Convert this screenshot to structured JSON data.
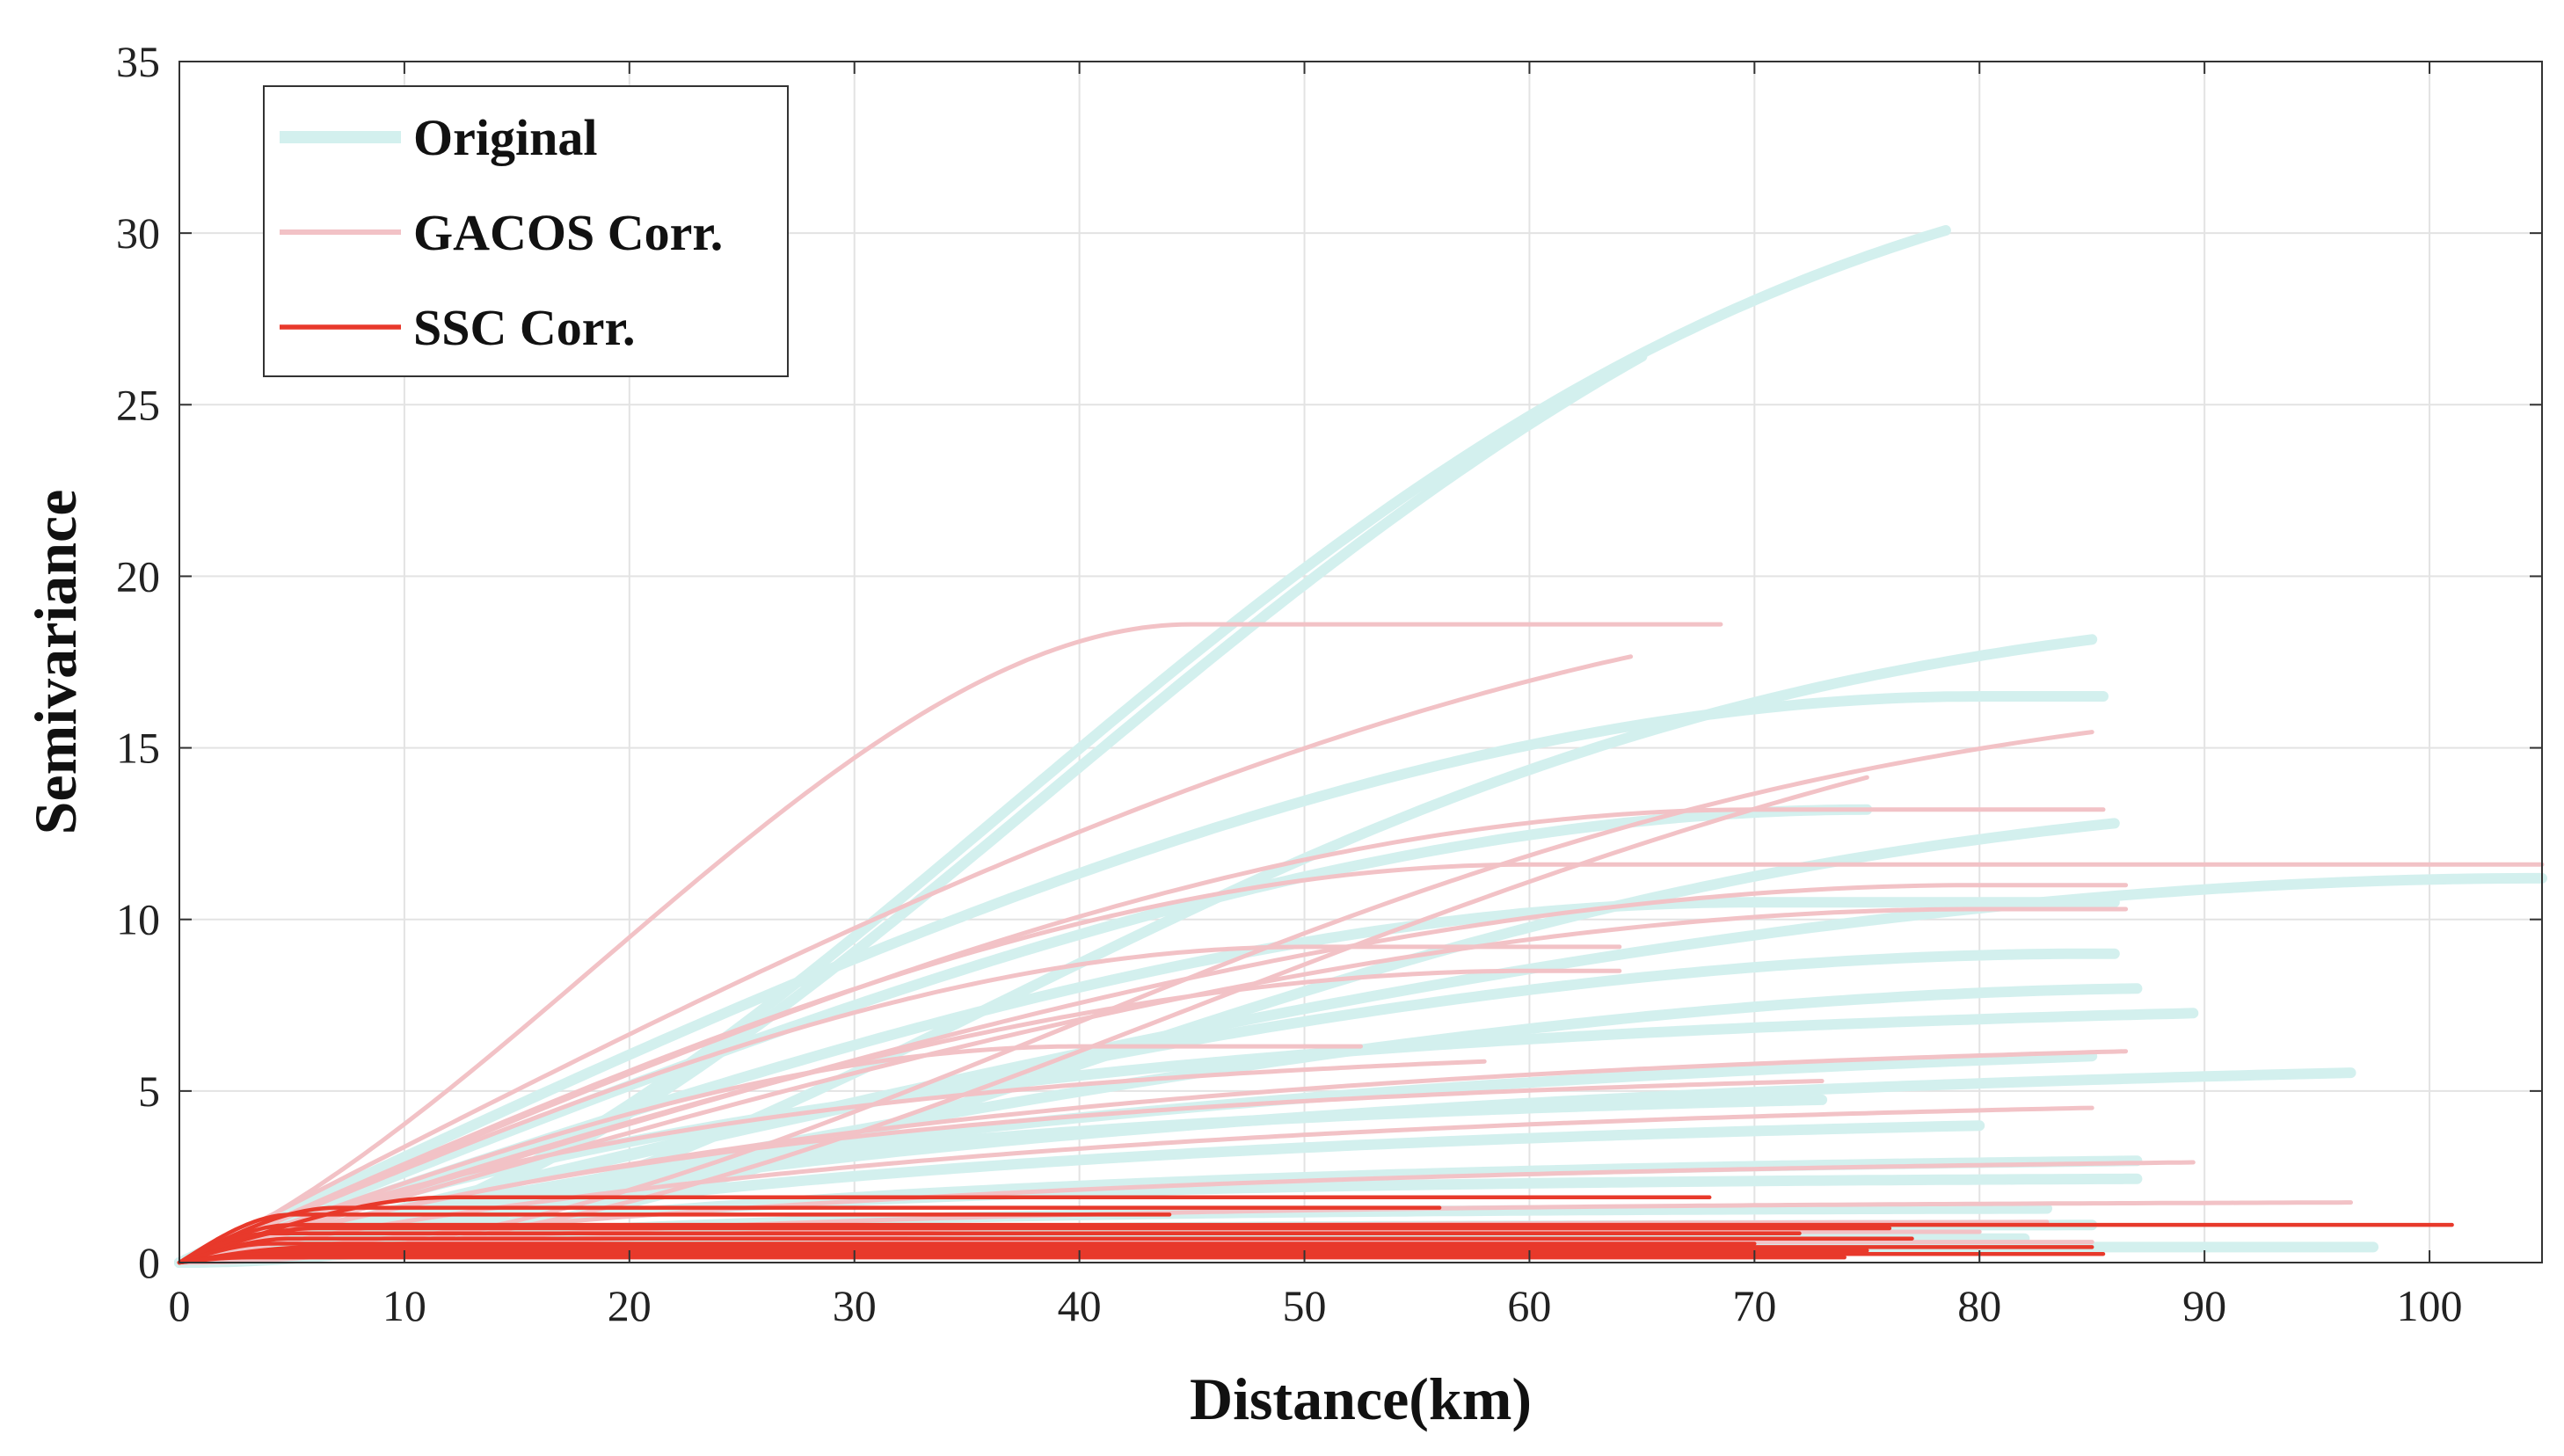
{
  "chart_data": {
    "type": "line",
    "title": "",
    "xlabel": "Distance(km)",
    "ylabel": "Semivariance",
    "xlim": [
      0,
      105
    ],
    "ylim": [
      0,
      35
    ],
    "xticks": [
      0,
      10,
      20,
      30,
      40,
      50,
      60,
      70,
      80,
      90,
      100
    ],
    "yticks": [
      0,
      5,
      10,
      15,
      20,
      25,
      30,
      35
    ],
    "grid": true,
    "legend_position": "top-left",
    "legend": [
      {
        "label": "Original",
        "color": "#d3f0ee"
      },
      {
        "label": "GACOS Corr.",
        "color": "#f2c2c6"
      },
      {
        "label": "SSC Corr.",
        "color": "#e8392b"
      }
    ],
    "series": [
      {
        "name": "Original",
        "color": "#d3f0ee",
        "curves": [
          {
            "sill": 33.5,
            "range": 90,
            "model": "gaussian",
            "xmax": 78.5
          },
          {
            "sill": 35.0,
            "range": 95,
            "model": "gaussian",
            "xmax": 65
          },
          {
            "sill": 19.5,
            "range": 90,
            "model": "gaussian",
            "xmax": 85
          },
          {
            "sill": 16.5,
            "range": 80,
            "model": "spherical",
            "xmax": 85.5
          },
          {
            "sill": 14.0,
            "range": 95,
            "model": "gaussian",
            "xmax": 86
          },
          {
            "sill": 13.2,
            "range": 75,
            "model": "spherical",
            "xmax": 75
          },
          {
            "sill": 11.2,
            "range": 105,
            "model": "spherical",
            "xmax": 105
          },
          {
            "sill": 10.5,
            "range": 70,
            "model": "spherical",
            "xmax": 86
          },
          {
            "sill": 9.0,
            "range": 85,
            "model": "spherical",
            "xmax": 86
          },
          {
            "sill": 8.0,
            "range": 90,
            "model": "spherical",
            "xmax": 87
          },
          {
            "sill": 7.8,
            "range": 100,
            "model": "exponential",
            "xmax": 89.5
          },
          {
            "sill": 7.0,
            "range": 130,
            "model": "exponential",
            "xmax": 85
          },
          {
            "sill": 6.2,
            "range": 130,
            "model": "exponential",
            "xmax": 96.5
          },
          {
            "sill": 5.2,
            "range": 90,
            "model": "exponential",
            "xmax": 73
          },
          {
            "sill": 4.5,
            "range": 110,
            "model": "exponential",
            "xmax": 80
          },
          {
            "sill": 3.2,
            "range": 100,
            "model": "exponential",
            "xmax": 87
          },
          {
            "sill": 2.5,
            "range": 70,
            "model": "exponential",
            "xmax": 87
          },
          {
            "sill": 1.6,
            "range": 60,
            "model": "exponential",
            "xmax": 83
          },
          {
            "sill": 1.1,
            "range": 50,
            "model": "exponential",
            "xmax": 85
          },
          {
            "sill": 0.7,
            "range": 40,
            "model": "exponential",
            "xmax": 82
          },
          {
            "sill": 0.45,
            "range": 30,
            "model": "exponential",
            "xmax": 97.5
          }
        ]
      },
      {
        "name": "GACOS Corr.",
        "color": "#f2c2c6",
        "curves": [
          {
            "sill": 18.6,
            "range": 45,
            "model": "spherical_s",
            "xmax": 68.5
          },
          {
            "sill": 19.2,
            "range": 85,
            "model": "spherical",
            "xmax": 64.5
          },
          {
            "sill": 18.8,
            "range": 110,
            "model": "gaussian",
            "xmax": 75
          },
          {
            "sill": 17.0,
            "range": 95,
            "model": "gaussian",
            "xmax": 85
          },
          {
            "sill": 13.2,
            "range": 70,
            "model": "spherical",
            "xmax": 85.5
          },
          {
            "sill": 11.6,
            "range": 60,
            "model": "spherical",
            "xmax": 105
          },
          {
            "sill": 11.0,
            "range": 80,
            "model": "spherical",
            "xmax": 86.5
          },
          {
            "sill": 10.3,
            "range": 80,
            "model": "spherical",
            "xmax": 86.5
          },
          {
            "sill": 9.2,
            "range": 50,
            "model": "spherical",
            "xmax": 64
          },
          {
            "sill": 8.5,
            "range": 60,
            "model": "spherical",
            "xmax": 64
          },
          {
            "sill": 6.3,
            "range": 40,
            "model": "spherical",
            "xmax": 52.5
          },
          {
            "sill": 6.5,
            "range": 75,
            "model": "exponential",
            "xmax": 58
          },
          {
            "sill": 6.8,
            "range": 110,
            "model": "exponential",
            "xmax": 86.5
          },
          {
            "sill": 5.8,
            "range": 90,
            "model": "exponential",
            "xmax": 73
          },
          {
            "sill": 5.0,
            "range": 110,
            "model": "exponential",
            "xmax": 85
          },
          {
            "sill": 3.2,
            "range": 110,
            "model": "exponential",
            "xmax": 89.5
          },
          {
            "sill": 1.8,
            "range": 80,
            "model": "exponential",
            "xmax": 96.5
          },
          {
            "sill": 1.2,
            "range": 60,
            "model": "exponential",
            "xmax": 83
          },
          {
            "sill": 0.9,
            "range": 40,
            "model": "exponential",
            "xmax": 80
          },
          {
            "sill": 0.6,
            "range": 30,
            "model": "exponential",
            "xmax": 85
          }
        ]
      },
      {
        "name": "SSC Corr.",
        "color": "#e8392b",
        "curves": [
          {
            "sill": 1.9,
            "range": 12,
            "model": "spherical",
            "xmax": 68
          },
          {
            "sill": 1.6,
            "range": 7,
            "model": "spherical",
            "xmax": 56
          },
          {
            "sill": 1.4,
            "range": 5,
            "model": "spherical",
            "xmax": 44
          },
          {
            "sill": 1.1,
            "range": 5,
            "model": "spherical",
            "xmax": 101
          },
          {
            "sill": 1.0,
            "range": 6,
            "model": "spherical",
            "xmax": 76
          },
          {
            "sill": 0.85,
            "range": 4,
            "model": "spherical",
            "xmax": 72
          },
          {
            "sill": 0.7,
            "range": 5,
            "model": "spherical",
            "xmax": 77
          },
          {
            "sill": 0.55,
            "range": 4,
            "model": "spherical",
            "xmax": 70
          },
          {
            "sill": 0.45,
            "range": 6,
            "model": "spherical",
            "xmax": 85
          },
          {
            "sill": 0.35,
            "range": 5,
            "model": "spherical",
            "xmax": 75
          },
          {
            "sill": 0.25,
            "range": 4,
            "model": "spherical",
            "xmax": 85.5
          },
          {
            "sill": 0.15,
            "range": 3,
            "model": "spherical",
            "xmax": 74
          }
        ]
      }
    ]
  }
}
